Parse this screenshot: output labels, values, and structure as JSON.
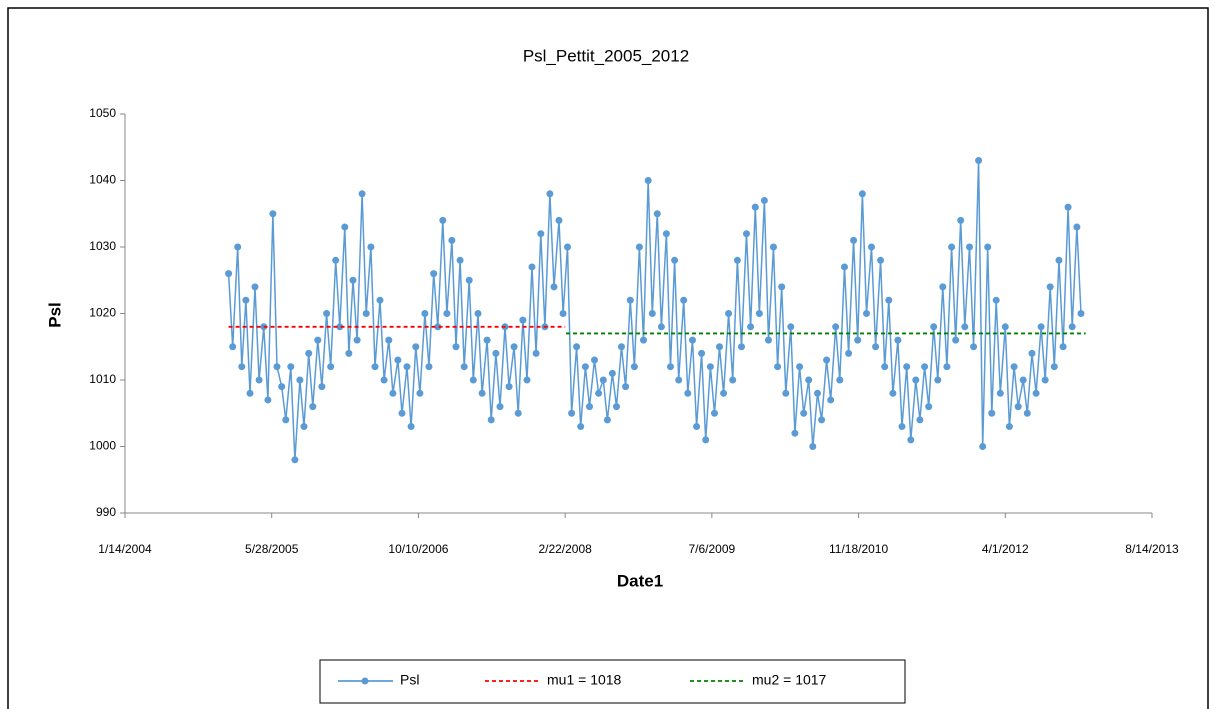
{
  "chart_data": {
    "type": "line",
    "title": "Psl_Pettit_2005_2012",
    "x_label": "Date1",
    "y_label": "Psl",
    "xlim": [
      "1/14/2004",
      "8/14/2013"
    ],
    "xticks": [
      "1/14/2004",
      "5/28/2005",
      "10/10/2006",
      "2/22/2008",
      "7/6/2009",
      "11/18/2010",
      "4/1/2012",
      "8/14/2013"
    ],
    "ylim": [
      990,
      1050
    ],
    "yticks": [
      990,
      1000,
      1010,
      1020,
      1030,
      1040,
      1050
    ],
    "legend": "bottom",
    "series": [
      {
        "name": "Psl",
        "color": "#5b9bd5",
        "marker": "circle",
        "x": [
          "1/1/2005",
          "1/15/2005",
          "2/1/2005",
          "2/15/2005",
          "3/1/2005",
          "3/15/2005",
          "4/1/2005",
          "4/15/2005",
          "5/1/2005",
          "5/15/2005",
          "6/1/2005",
          "6/15/2005",
          "7/1/2005",
          "7/15/2005",
          "8/1/2005",
          "8/15/2005",
          "9/1/2005",
          "9/15/2005",
          "10/1/2005",
          "10/15/2005",
          "11/1/2005",
          "11/15/2005",
          "12/1/2005",
          "12/15/2005",
          "1/1/2006",
          "1/15/2006",
          "2/1/2006",
          "2/15/2006",
          "3/1/2006",
          "3/15/2006",
          "4/1/2006",
          "4/15/2006",
          "5/1/2006",
          "5/15/2006",
          "6/1/2006",
          "6/15/2006",
          "7/1/2006",
          "7/15/2006",
          "8/1/2006",
          "8/15/2006",
          "9/1/2006",
          "9/15/2006",
          "10/1/2006",
          "10/15/2006",
          "11/1/2006",
          "11/15/2006",
          "12/1/2006",
          "12/15/2006",
          "1/1/2007",
          "1/15/2007",
          "2/1/2007",
          "2/15/2007",
          "3/1/2007",
          "3/15/2007",
          "4/1/2007",
          "4/15/2007",
          "5/1/2007",
          "5/15/2007",
          "6/1/2007",
          "6/15/2007",
          "7/1/2007",
          "7/15/2007",
          "8/1/2007",
          "8/15/2007",
          "9/1/2007",
          "9/15/2007",
          "10/1/2007",
          "10/15/2007",
          "11/1/2007",
          "11/15/2007",
          "12/1/2007",
          "12/15/2007",
          "1/1/2008",
          "1/15/2008",
          "2/1/2008",
          "2/15/2008",
          "3/1/2008",
          "3/15/2008",
          "4/1/2008",
          "4/15/2008",
          "5/1/2008",
          "5/15/2008",
          "6/1/2008",
          "6/15/2008",
          "7/1/2008",
          "7/15/2008",
          "8/1/2008",
          "8/15/2008",
          "9/1/2008",
          "9/15/2008",
          "10/1/2008",
          "10/15/2008",
          "11/1/2008",
          "11/15/2008",
          "12/1/2008",
          "12/15/2008",
          "1/1/2009",
          "1/15/2009",
          "2/1/2009",
          "2/15/2009",
          "3/1/2009",
          "3/15/2009",
          "4/1/2009",
          "4/15/2009",
          "5/1/2009",
          "5/15/2009",
          "6/1/2009",
          "6/15/2009",
          "7/1/2009",
          "7/15/2009",
          "8/1/2009",
          "8/15/2009",
          "9/1/2009",
          "9/15/2009",
          "10/1/2009",
          "10/15/2009",
          "11/1/2009",
          "11/15/2009",
          "12/1/2009",
          "12/15/2009",
          "1/1/2010",
          "1/15/2010",
          "2/1/2010",
          "2/15/2010",
          "3/1/2010",
          "3/15/2010",
          "4/1/2010",
          "4/15/2010",
          "5/1/2010",
          "5/15/2010",
          "6/1/2010",
          "6/15/2010",
          "7/1/2010",
          "7/15/2010",
          "8/1/2010",
          "8/15/2010",
          "9/1/2010",
          "9/15/2010",
          "10/1/2010",
          "10/15/2010",
          "11/1/2010",
          "11/15/2010",
          "12/1/2010",
          "12/15/2010",
          "1/1/2011",
          "1/15/2011",
          "2/1/2011",
          "2/15/2011",
          "3/1/2011",
          "3/15/2011",
          "4/1/2011",
          "4/15/2011",
          "5/1/2011",
          "5/15/2011",
          "6/1/2011",
          "6/15/2011",
          "7/1/2011",
          "7/15/2011",
          "8/1/2011",
          "8/15/2011",
          "9/1/2011",
          "9/15/2011",
          "10/1/2011",
          "10/15/2011",
          "11/1/2011",
          "11/15/2011",
          "12/1/2011",
          "12/15/2011",
          "1/1/2012",
          "1/15/2012",
          "2/1/2012",
          "2/15/2012",
          "3/1/2012",
          "3/15/2012",
          "4/1/2012",
          "4/15/2012",
          "5/1/2012",
          "5/15/2012",
          "6/1/2012",
          "6/15/2012",
          "7/1/2012",
          "7/15/2012",
          "8/1/2012",
          "8/15/2012",
          "9/1/2012",
          "9/15/2012",
          "10/1/2012",
          "10/15/2012",
          "11/1/2012",
          "11/15/2012",
          "12/1/2012",
          "12/15/2012"
        ],
        "values": [
          1026,
          1015,
          1030,
          1012,
          1022,
          1008,
          1024,
          1010,
          1018,
          1007,
          1035,
          1012,
          1009,
          1004,
          1012,
          998,
          1010,
          1003,
          1014,
          1006,
          1016,
          1009,
          1020,
          1012,
          1028,
          1018,
          1033,
          1014,
          1025,
          1016,
          1038,
          1020,
          1030,
          1012,
          1022,
          1010,
          1016,
          1008,
          1013,
          1005,
          1012,
          1003,
          1015,
          1008,
          1020,
          1012,
          1026,
          1018,
          1034,
          1020,
          1031,
          1015,
          1028,
          1012,
          1025,
          1010,
          1020,
          1008,
          1016,
          1004,
          1014,
          1006,
          1018,
          1009,
          1015,
          1005,
          1019,
          1010,
          1027,
          1014,
          1032,
          1018,
          1038,
          1024,
          1034,
          1020,
          1030,
          1005,
          1015,
          1003,
          1012,
          1006,
          1013,
          1008,
          1010,
          1004,
          1011,
          1006,
          1015,
          1009,
          1022,
          1012,
          1030,
          1016,
          1040,
          1020,
          1035,
          1018,
          1032,
          1012,
          1028,
          1010,
          1022,
          1008,
          1016,
          1003,
          1014,
          1001,
          1012,
          1005,
          1015,
          1008,
          1020,
          1010,
          1028,
          1015,
          1032,
          1018,
          1036,
          1020,
          1037,
          1016,
          1030,
          1012,
          1024,
          1008,
          1018,
          1002,
          1012,
          1005,
          1010,
          1000,
          1008,
          1004,
          1013,
          1007,
          1018,
          1010,
          1027,
          1014,
          1031,
          1016,
          1038,
          1020,
          1030,
          1015,
          1028,
          1012,
          1022,
          1008,
          1016,
          1003,
          1012,
          1001,
          1010,
          1004,
          1012,
          1006,
          1018,
          1010,
          1024,
          1012,
          1030,
          1016,
          1034,
          1018,
          1030,
          1015,
          1043,
          1000,
          1030,
          1005,
          1022,
          1008,
          1018,
          1003,
          1012,
          1006,
          1010,
          1005,
          1014,
          1008,
          1018,
          1010,
          1024,
          1012,
          1028,
          1015,
          1036,
          1018,
          1033,
          1020
        ]
      },
      {
        "name": "mu1 = 1018",
        "color": "#ff0000",
        "dash": true,
        "x": [
          "1/1/2005",
          "2/22/2008"
        ],
        "values": [
          1018,
          1018
        ]
      },
      {
        "name": "mu2 = 1017",
        "color": "#008000",
        "dash": true,
        "x": [
          "2/25/2008",
          "12/31/2012"
        ],
        "values": [
          1017,
          1017
        ]
      }
    ]
  }
}
